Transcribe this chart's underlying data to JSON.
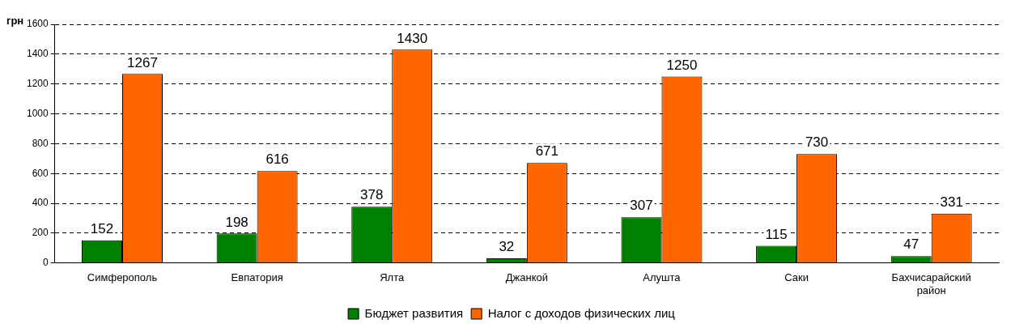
{
  "chart_data": {
    "type": "bar",
    "ylabel": "грн",
    "categories": [
      "Симферополь",
      "Евпатория",
      "Ялта",
      "Джанкой",
      "Алушта",
      "Саки",
      "Бахчисарайский район"
    ],
    "series": [
      {
        "name": "Бюджет развития",
        "color": "#008000",
        "values": [
          152,
          198,
          378,
          32,
          307,
          115,
          47
        ]
      },
      {
        "name": "Налог с доходов физических лиц",
        "color": "#ff6600",
        "values": [
          1267,
          616,
          1430,
          671,
          1250,
          730,
          331
        ]
      }
    ],
    "ylim": [
      0,
      1600
    ],
    "yticks": [
      0,
      200,
      400,
      600,
      800,
      1000,
      1200,
      1400,
      1600
    ],
    "grid": "y",
    "line_style": "dashed",
    "legend": "bottom",
    "data_labels": true
  }
}
